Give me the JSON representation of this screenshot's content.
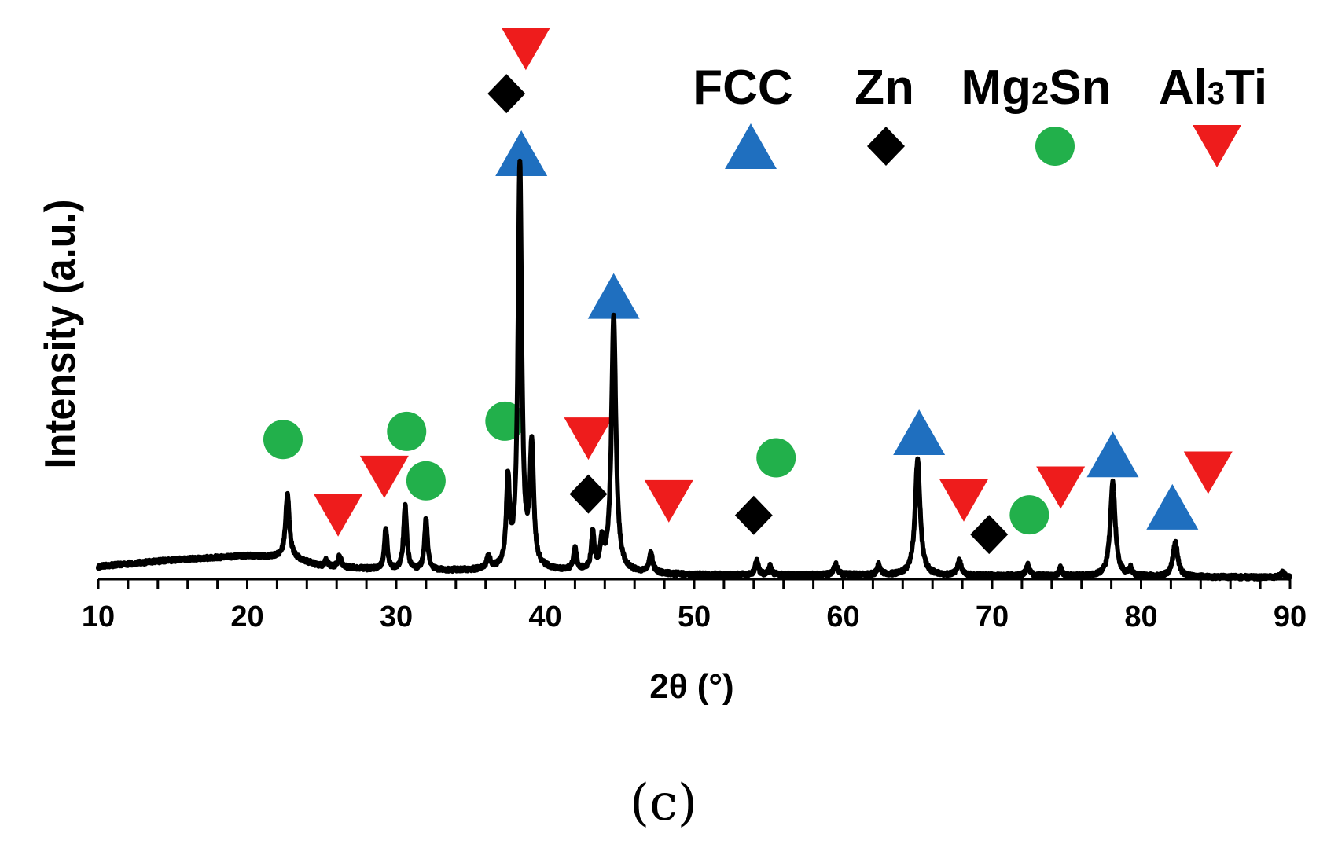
{
  "panel_label": "(c)",
  "chart_data": {
    "type": "line",
    "title": "",
    "xlabel": "2θ (°)",
    "ylabel": "Intensity (a.u.)",
    "xlim": [
      10,
      90
    ],
    "ylim": [
      0,
      100
    ],
    "xticks": [
      10,
      20,
      30,
      40,
      50,
      60,
      70,
      80,
      90
    ],
    "xtick_labels": [
      "10",
      "20",
      "30",
      "40",
      "50",
      "60",
      "70",
      "80",
      "90"
    ],
    "minor_ticks_per_major": 5,
    "grid": false,
    "legend_position": "top-right",
    "colors": {
      "FCC": "#1f6fbf",
      "Zn": "#000000",
      "Mg2Sn": "#22b04b",
      "Al3Ti": "#ee1c1c",
      "line": "#000000"
    },
    "legend": [
      {
        "phase": "FCC",
        "text": "FCC",
        "base": "FCC",
        "sub": "",
        "rest": "",
        "marker": "triangle-up"
      },
      {
        "phase": "Zn",
        "text": "Zn",
        "base": "Zn",
        "sub": "",
        "rest": "",
        "marker": "diamond"
      },
      {
        "phase": "Mg2Sn",
        "text": "Mg₂Sn",
        "base": "Mg",
        "sub": "2",
        "rest": "Sn",
        "marker": "circle"
      },
      {
        "phase": "Al3Ti",
        "text": "Al₃Ti",
        "base": "Al",
        "sub": "3",
        "rest": "Ti",
        "marker": "triangle-down"
      }
    ],
    "baseline": [
      [
        10,
        3.0
      ],
      [
        15,
        4.5
      ],
      [
        20,
        5.5
      ],
      [
        23,
        5.0
      ],
      [
        25,
        3.0
      ],
      [
        30,
        2.0
      ],
      [
        35,
        2.0
      ],
      [
        40,
        2.0
      ],
      [
        50,
        1.0
      ],
      [
        60,
        1.0
      ],
      [
        70,
        0.8
      ],
      [
        80,
        0.6
      ],
      [
        90,
        0.4
      ]
    ],
    "peaks": [
      {
        "x": 22.7,
        "h": 15.0,
        "w": 0.15
      },
      {
        "x": 25.3,
        "h": 1.5,
        "w": 0.12
      },
      {
        "x": 26.2,
        "h": 2.7,
        "w": 0.12
      },
      {
        "x": 29.3,
        "h": 9.5,
        "w": 0.12
      },
      {
        "x": 30.6,
        "h": 15.0,
        "w": 0.13
      },
      {
        "x": 32.0,
        "h": 12.0,
        "w": 0.12
      },
      {
        "x": 36.2,
        "h": 3.0,
        "w": 0.15
      },
      {
        "x": 37.5,
        "h": 20.0,
        "w": 0.13
      },
      {
        "x": 38.3,
        "h": 95.0,
        "w": 0.15
      },
      {
        "x": 39.1,
        "h": 28.0,
        "w": 0.15
      },
      {
        "x": 42.0,
        "h": 5.0,
        "w": 0.12
      },
      {
        "x": 43.2,
        "h": 8.5,
        "w": 0.12
      },
      {
        "x": 43.8,
        "h": 6.0,
        "w": 0.12
      },
      {
        "x": 44.6,
        "h": 60.0,
        "w": 0.18
      },
      {
        "x": 47.1,
        "h": 4.5,
        "w": 0.15
      },
      {
        "x": 54.2,
        "h": 3.5,
        "w": 0.12
      },
      {
        "x": 55.1,
        "h": 2.0,
        "w": 0.12
      },
      {
        "x": 59.5,
        "h": 2.5,
        "w": 0.15
      },
      {
        "x": 62.4,
        "h": 2.5,
        "w": 0.12
      },
      {
        "x": 65.0,
        "h": 27.0,
        "w": 0.2
      },
      {
        "x": 67.8,
        "h": 3.5,
        "w": 0.15
      },
      {
        "x": 72.4,
        "h": 2.5,
        "w": 0.15
      },
      {
        "x": 74.6,
        "h": 2.0,
        "w": 0.12
      },
      {
        "x": 78.1,
        "h": 22.0,
        "w": 0.2
      },
      {
        "x": 79.3,
        "h": 1.8,
        "w": 0.12
      },
      {
        "x": 82.3,
        "h": 8.0,
        "w": 0.2
      },
      {
        "x": 89.5,
        "h": 1.2,
        "w": 0.15
      }
    ],
    "annotations": [
      {
        "phase": "FCC",
        "x": 38.4,
        "y": 100.0
      },
      {
        "phase": "FCC",
        "x": 44.6,
        "y": 66.5
      },
      {
        "phase": "FCC",
        "x": 65.1,
        "y": 34.5
      },
      {
        "phase": "FCC",
        "x": 78.1,
        "y": 29.3
      },
      {
        "phase": "FCC",
        "x": 82.1,
        "y": 17.0
      },
      {
        "phase": "Zn",
        "x": 37.4,
        "y": 114.0
      },
      {
        "phase": "Zn",
        "x": 42.9,
        "y": 20.0
      },
      {
        "phase": "Zn",
        "x": 54.0,
        "y": 15.0
      },
      {
        "phase": "Zn",
        "x": 69.8,
        "y": 10.5
      },
      {
        "phase": "Mg2Sn",
        "x": 22.4,
        "y": 32.8
      },
      {
        "phase": "Mg2Sn",
        "x": 30.7,
        "y": 34.7
      },
      {
        "phase": "Mg2Sn",
        "x": 32.0,
        "y": 23.1
      },
      {
        "phase": "Mg2Sn",
        "x": 37.3,
        "y": 37.1
      },
      {
        "phase": "Mg2Sn",
        "x": 55.5,
        "y": 28.5
      },
      {
        "phase": "Mg2Sn",
        "x": 72.5,
        "y": 15.1
      },
      {
        "phase": "Al3Ti",
        "x": 38.7,
        "y": 124.5
      },
      {
        "phase": "Al3Ti",
        "x": 26.1,
        "y": 15.0
      },
      {
        "phase": "Al3Ti",
        "x": 29.2,
        "y": 24.0
      },
      {
        "phase": "Al3Ti",
        "x": 42.9,
        "y": 33.0
      },
      {
        "phase": "Al3Ti",
        "x": 48.3,
        "y": 18.3
      },
      {
        "phase": "Al3Ti",
        "x": 68.1,
        "y": 18.5
      },
      {
        "phase": "Al3Ti",
        "x": 74.6,
        "y": 21.5
      },
      {
        "phase": "Al3Ti",
        "x": 84.5,
        "y": 25.0
      }
    ]
  }
}
